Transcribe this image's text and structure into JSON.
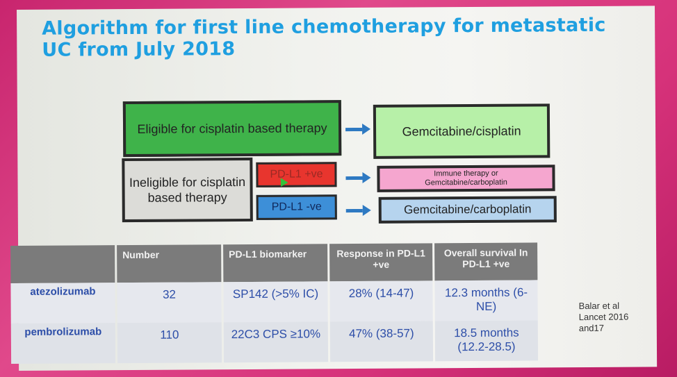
{
  "slide": {
    "title": "Algorithm for first line chemotherapy for metastatic UC from July 2018"
  },
  "flowchart": {
    "eligible": "Eligible for cisplatin based therapy",
    "gem_cis": "Gemcitabine/cisplatin",
    "ineligible": "Ineligible for cisplatin based therapy",
    "pd_pos": "PD-L1 +ve",
    "pd_neg": "PD-L1 -ve",
    "immune": "Immune therapy or Gemcitabine/carboplatin",
    "gem_carb": "Gemcitabine/carboplatin",
    "colors": {
      "eligible": "#3fb34a",
      "gem_cis": "#b7f0a8",
      "pd_pos": "#e8352e",
      "pd_neg": "#3d8fd8",
      "immune": "#f5a6cf",
      "gem_carb": "#b6d4ee",
      "arrow": "#2e79c2"
    }
  },
  "table": {
    "headers": [
      "",
      "Number",
      "PD-L1 biomarker",
      "Response in PD-L1 +ve",
      "Overall survival In PD-L1 +ve"
    ],
    "rows": [
      [
        "atezolizumab",
        "32",
        "SP142 (>5% IC)",
        "28% (14-47)",
        "12.3 months (6-NE)"
      ],
      [
        "pembrolizumab",
        "110",
        "22C3 CPS ≥10%",
        "47% (38-57)",
        "18.5 months (12.2-28.5)"
      ]
    ]
  },
  "reference": "Balar et al Lancet 2016 and17"
}
